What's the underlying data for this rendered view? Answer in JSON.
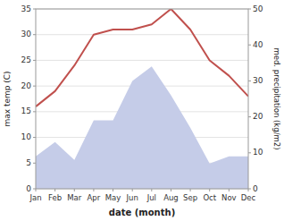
{
  "chart_data": {
    "type": "line",
    "xlabel": "date (month)",
    "ylabel": "max temp (C)",
    "y2label": "med. precipitation (kg/m2)",
    "categories": [
      "Jan",
      "Feb",
      "Mar",
      "Apr",
      "May",
      "Jun",
      "Jul",
      "Aug",
      "Sep",
      "Oct",
      "Nov",
      "Dec"
    ],
    "series": [
      {
        "type": "area",
        "axis": "y2",
        "color": "#c5cce8",
        "values": [
          9,
          13,
          8,
          19,
          19,
          30,
          34,
          26,
          17,
          7,
          9,
          9
        ]
      },
      {
        "type": "line",
        "color": "#c0504d",
        "values": [
          16,
          19,
          24,
          30,
          31,
          31,
          32,
          35,
          31,
          25,
          22,
          18
        ]
      }
    ],
    "ylim": [
      0,
      35
    ],
    "yticks": [
      0,
      5,
      10,
      15,
      20,
      25,
      30,
      35
    ],
    "y2lim": [
      0,
      50
    ],
    "y2ticks": [
      0,
      10,
      20,
      30,
      40,
      50
    ],
    "grid": true
  }
}
